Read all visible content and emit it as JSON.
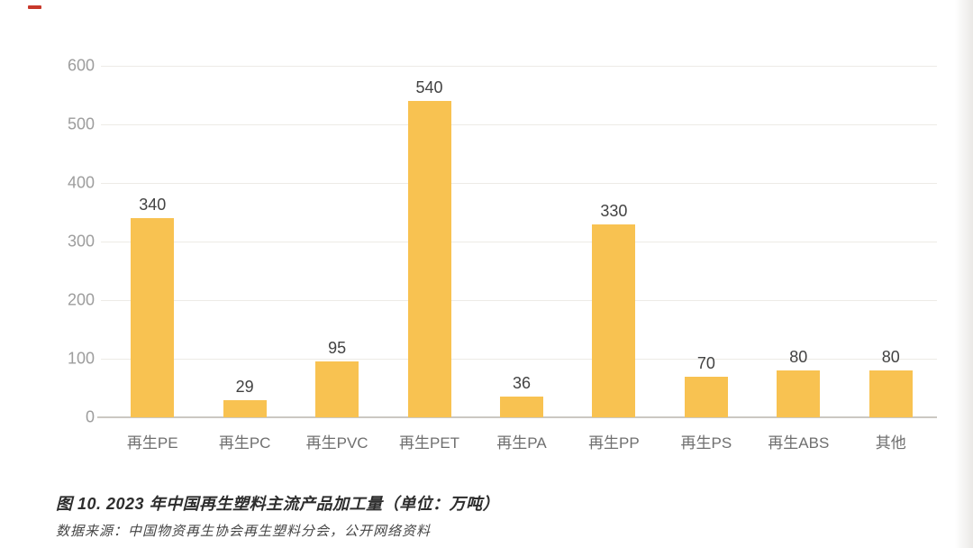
{
  "chart_data": {
    "type": "bar",
    "title": "图 10. 2023 年中国再生塑料主流产品加工量（单位：万吨）",
    "source": "数据来源：中国物资再生协会再生塑料分会，公开网络资料",
    "categories": [
      "再生PE",
      "再生PC",
      "再生PVC",
      "再生PET",
      "再生PA",
      "再生PP",
      "再生PS",
      "再生ABS",
      "其他"
    ],
    "values": [
      340,
      29,
      95,
      540,
      36,
      330,
      70,
      80,
      80
    ],
    "yticks": [
      0,
      100,
      200,
      300,
      400,
      500,
      600
    ],
    "ylim": [
      0,
      600
    ],
    "xlabel": "",
    "ylabel": "",
    "legend": "none",
    "grid": "faint horizontal gridlines",
    "bar_color": "#F8C251",
    "value_label_color": "#424242",
    "tick_label_color": "#9d9d9d",
    "category_label_color": "#6f6f6f"
  },
  "annotation": {
    "red_mark_color": "#c8382b"
  }
}
